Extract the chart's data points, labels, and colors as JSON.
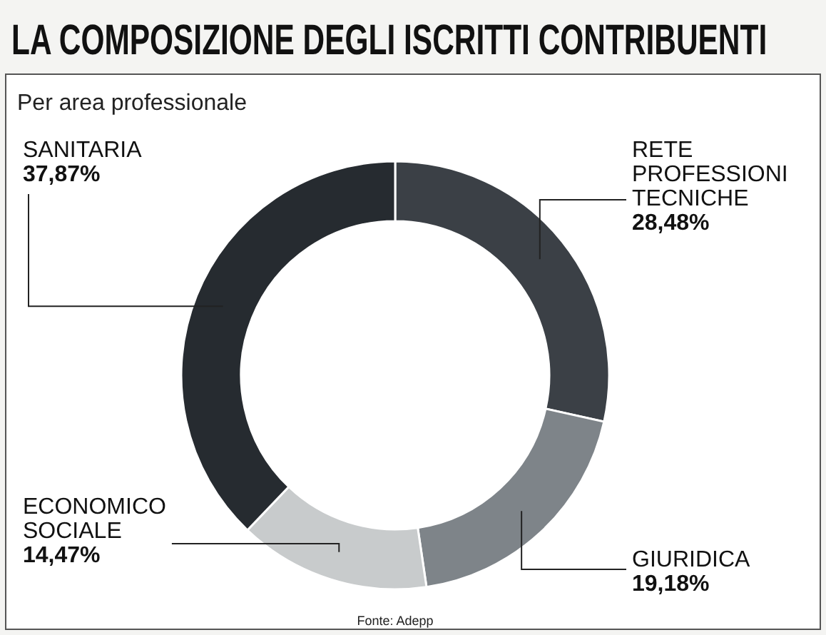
{
  "chart_data": {
    "type": "donut",
    "title": "LA COMPOSIZIONE DEGLI ISCRITTI CONTRIBUENTI",
    "subtitle": "Per area professionale",
    "categories": [
      "RETE PROFESSIONI TECNICHE",
      "GIURIDICA",
      "ECONOMICO SOCIALE",
      "SANITARIA"
    ],
    "values": [
      28.48,
      19.18,
      14.47,
      37.87
    ],
    "value_labels": [
      "28,48%",
      "19,18%",
      "14,47%",
      "37,87%"
    ],
    "colors": [
      "#3b4046",
      "#7e8489",
      "#c8cbcc",
      "#262b30"
    ],
    "annotations": [
      "Fonte: Adepp"
    ]
  }
}
